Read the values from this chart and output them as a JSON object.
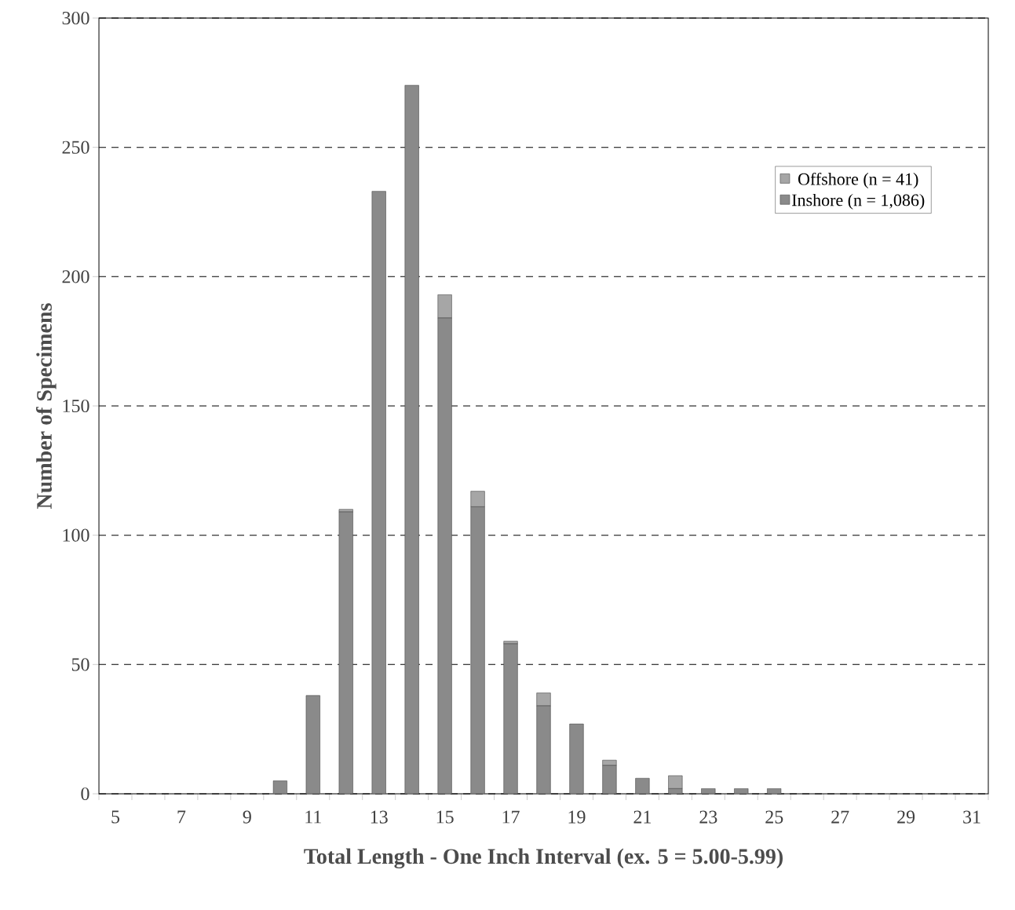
{
  "chart_data": {
    "type": "bar",
    "stacked": true,
    "xlabel": "Total Length - One Inch Interval (ex. 5 = 5.00-5.99)",
    "ylabel": "Number of Specimens",
    "categories": [
      "5",
      null,
      "7",
      null,
      "9",
      null,
      "11",
      null,
      "13",
      null,
      "15",
      null,
      "17",
      null,
      "19",
      null,
      "21",
      null,
      "23",
      null,
      "25",
      null,
      "27",
      null,
      "29",
      null,
      "31"
    ],
    "series": [
      {
        "name": "Inshore (n = 1,086)",
        "color": "#8a8a8a",
        "values": [
          0,
          0,
          0,
          0,
          0,
          5,
          38,
          109,
          233,
          274,
          184,
          111,
          58,
          34,
          27,
          11,
          6,
          2,
          2,
          2,
          2,
          0,
          0,
          0,
          0,
          0,
          0
        ]
      },
      {
        "name": "Offshore (n = 41)",
        "color": "#a6a6a6",
        "values": [
          0,
          0,
          0,
          0,
          0,
          0,
          0,
          1,
          0,
          0,
          9,
          6,
          1,
          5,
          0,
          2,
          0,
          5,
          0,
          0,
          0,
          0,
          0,
          0,
          0,
          0,
          0
        ]
      }
    ],
    "ylim": [
      0,
      300
    ],
    "yticks": [
      0,
      50,
      100,
      150,
      200,
      250,
      300
    ],
    "grid": "y",
    "legend": "top right"
  }
}
